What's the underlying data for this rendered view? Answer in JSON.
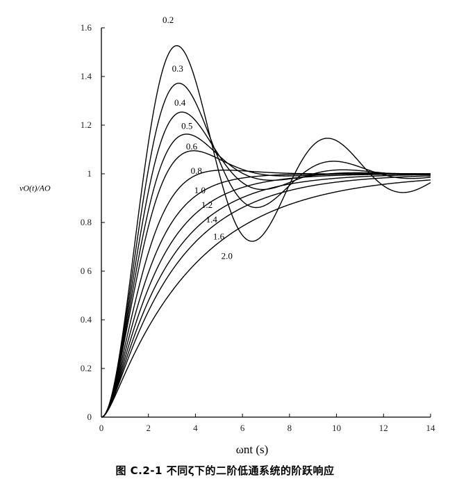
{
  "chart_data": {
    "type": "line",
    "title": "",
    "xlabel": "ωnt (s)",
    "ylabel": "vO(t)/AO",
    "xlim": [
      0,
      14
    ],
    "ylim": [
      0,
      1.6
    ],
    "xticks": [
      0,
      2,
      4,
      6,
      8,
      10,
      12,
      14
    ],
    "yticks": [
      0,
      0.2,
      0.4,
      0.6,
      0.8,
      1,
      1.2,
      1.4,
      1.6
    ],
    "xtick_labels": [
      "0",
      "2",
      "4",
      "6",
      "8",
      "10",
      "12",
      "14"
    ],
    "ytick_labels": [
      "0",
      "0.2",
      "0.4",
      "0 6",
      "0.8",
      "1",
      "1.2",
      "1.4",
      "1.6"
    ],
    "grid": false,
    "function": "unit step response of 2nd-order low-pass system: y(t) for damping ratio ζ, t = ωn·t",
    "series": [
      {
        "name": "0.2",
        "zeta": 0.2,
        "peak": 1.53,
        "label_at": [
          2.6,
          1.62
        ]
      },
      {
        "name": "0.3",
        "zeta": 0.3,
        "peak": 1.37,
        "label_at": [
          3.0,
          1.42
        ]
      },
      {
        "name": "0.4",
        "zeta": 0.4,
        "peak": 1.25,
        "label_at": [
          3.1,
          1.28
        ]
      },
      {
        "name": "0.5",
        "zeta": 0.5,
        "peak": 1.16,
        "label_at": [
          3.4,
          1.185
        ]
      },
      {
        "name": "0.6",
        "zeta": 0.6,
        "peak": 1.1,
        "label_at": [
          3.6,
          1.1
        ]
      },
      {
        "name": "0.8",
        "zeta": 0.8,
        "peak": 1.02,
        "label_at": [
          3.8,
          1.0
        ]
      },
      {
        "name": "1.0",
        "zeta": 1.0,
        "peak": 1.0,
        "label_at": [
          3.95,
          0.92
        ]
      },
      {
        "name": "1.2",
        "zeta": 1.2,
        "peak": 1.0,
        "label_at": [
          4.25,
          0.86
        ]
      },
      {
        "name": "1.4",
        "zeta": 1.4,
        "peak": 1.0,
        "label_at": [
          4.45,
          0.8
        ]
      },
      {
        "name": "1.6",
        "zeta": 1.6,
        "peak": 1.0,
        "label_at": [
          4.75,
          0.73
        ]
      },
      {
        "name": "2.0",
        "zeta": 2.0,
        "peak": 1.0,
        "label_at": [
          5.1,
          0.65
        ]
      }
    ]
  },
  "caption": "图 C.2-1   不同ζ下的二阶低通系统的阶跃响应"
}
